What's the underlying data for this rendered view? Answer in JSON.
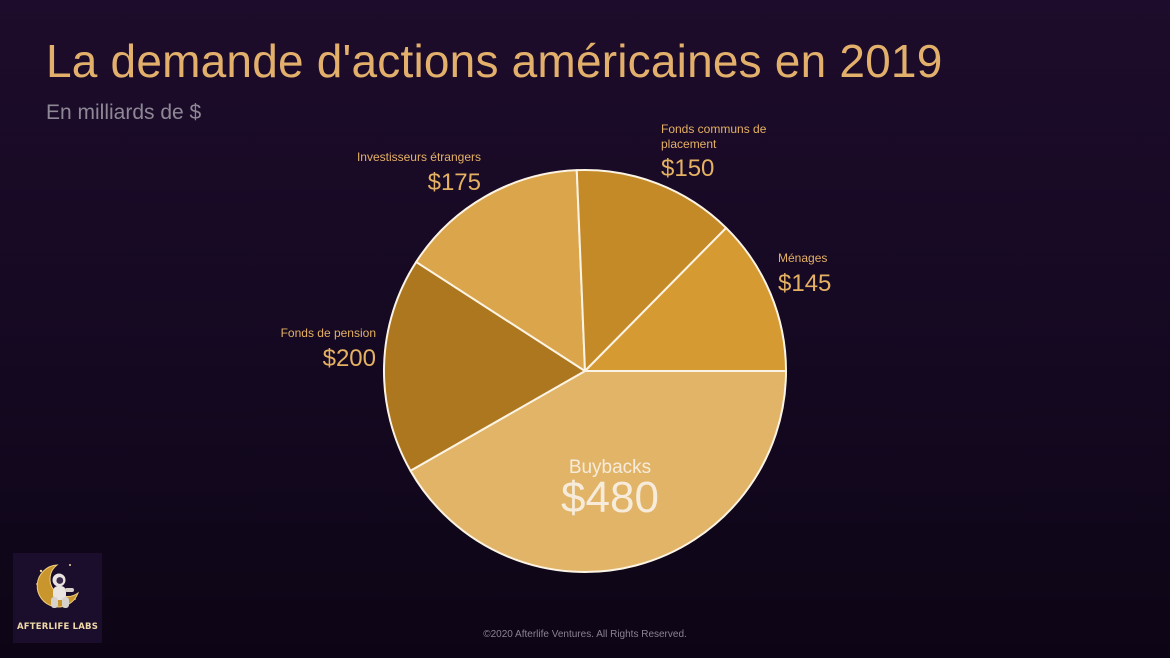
{
  "slide": {
    "title": "La demande d'actions américaines en 2019",
    "subtitle": "En milliards de $",
    "footer": "©2020 Afterlife Ventures. All Rights Reserved.",
    "logo_text": "AFTERLIFE LABS"
  },
  "chart_data": {
    "type": "pie",
    "title": "La demande d'actions américaines en 2019",
    "subtitle": "En milliards de $",
    "slices": [
      {
        "label": "Buybacks",
        "value": 480,
        "value_label": "$480",
        "color": "#e2b467"
      },
      {
        "label": "Fonds de pension",
        "value": 200,
        "value_label": "$200",
        "color": "#ad771f"
      },
      {
        "label": "Investisseurs étrangers",
        "value": 175,
        "value_label": "$175",
        "color": "#dba54c"
      },
      {
        "label": "Fonds communs de placement",
        "value": 150,
        "value_label": "$150",
        "color": "#c58a28"
      },
      {
        "label": "Ménages",
        "value": 145,
        "value_label": "$145",
        "color": "#d69a32"
      }
    ],
    "legend": "none",
    "label_color": "#e5b163"
  }
}
